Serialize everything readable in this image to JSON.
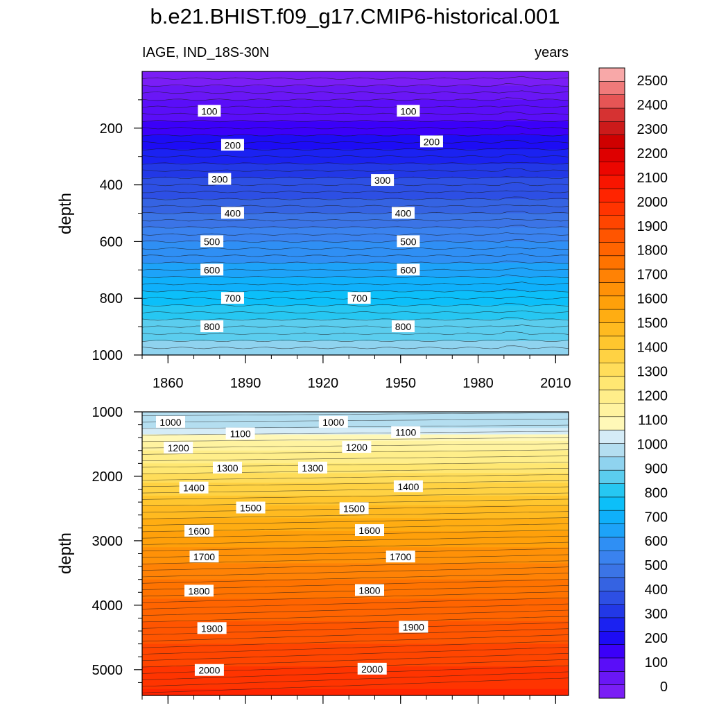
{
  "title": "b.e21.BHIST.f09_g17.CMIP6-historical.001",
  "chart_data": {
    "type": "contour",
    "title": "b.e21.BHIST.f09_g17.CMIP6-historical.001",
    "variable_label": "IAGE, IND_18S-30N",
    "units_label": "years",
    "colorbar": {
      "levels": [
        0,
        100,
        200,
        300,
        400,
        500,
        600,
        700,
        800,
        900,
        1000,
        1100,
        1200,
        1300,
        1400,
        1500,
        1600,
        1700,
        1800,
        1900,
        2000,
        2100,
        2200,
        2300,
        2400,
        2500
      ],
      "colors": [
        "#7a1ef5",
        "#6a17f6",
        "#5a0ef8",
        "#3b00f9",
        "#1d0cf5",
        "#1b22f1",
        "#2238e6",
        "#2d4fe4",
        "#3563e2",
        "#3b74e6",
        "#3a82ef",
        "#2f8ff4",
        "#1da3f9",
        "#0fb0fb",
        "#0cbff9",
        "#26c7f2",
        "#5bcdee",
        "#8fd3ef",
        "#b4def0",
        "#d5ecf7",
        "#fff8b8",
        "#fff3a0",
        "#ffee8a",
        "#ffe772",
        "#ffdd5a",
        "#ffd243",
        "#ffc62e",
        "#ffba20",
        "#ffad12",
        "#ffa00a",
        "#ff9107",
        "#ff8205",
        "#ff7300",
        "#ff6400",
        "#ff5500",
        "#ff4500",
        "#ff3400",
        "#ff2400",
        "#f81500",
        "#ec0600",
        "#de0000",
        "#cf0000",
        "#cc1a1a",
        "#d63232",
        "#e65555",
        "#f07a7a",
        "#f8a8a8"
      ]
    },
    "upper_panel": {
      "ylabel": "depth",
      "xticks": [
        1860,
        1890,
        1920,
        1950,
        1980,
        2010
      ],
      "yticks": [
        200,
        400,
        600,
        800,
        1000
      ],
      "ylim": [
        0,
        1000
      ],
      "xlim": [
        1850,
        2015
      ],
      "contour_labels": [
        {
          "text": "100",
          "year": 1876,
          "depth": 140
        },
        {
          "text": "100",
          "year": 1953,
          "depth": 140
        },
        {
          "text": "200",
          "year": 1885,
          "depth": 260
        },
        {
          "text": "200",
          "year": 1962,
          "depth": 248
        },
        {
          "text": "300",
          "year": 1880,
          "depth": 380
        },
        {
          "text": "300",
          "year": 1943,
          "depth": 384
        },
        {
          "text": "400",
          "year": 1885,
          "depth": 500
        },
        {
          "text": "400",
          "year": 1951,
          "depth": 500
        },
        {
          "text": "500",
          "year": 1877,
          "depth": 600
        },
        {
          "text": "500",
          "year": 1953,
          "depth": 600
        },
        {
          "text": "600",
          "year": 1877,
          "depth": 700
        },
        {
          "text": "600",
          "year": 1953,
          "depth": 700
        },
        {
          "text": "700",
          "year": 1885,
          "depth": 800
        },
        {
          "text": "700",
          "year": 1934,
          "depth": 800
        },
        {
          "text": "800",
          "year": 1877,
          "depth": 900
        },
        {
          "text": "800",
          "year": 1951,
          "depth": 900
        }
      ]
    },
    "lower_panel": {
      "ylabel": "depth",
      "yticks": [
        1000,
        2000,
        3000,
        4000,
        5000
      ],
      "ylim": [
        1000,
        5400
      ],
      "xlim": [
        1850,
        2015
      ],
      "contour_labels": [
        {
          "text": "1000",
          "year": 1861,
          "depth": 1160
        },
        {
          "text": "1000",
          "year": 1924,
          "depth": 1160
        },
        {
          "text": "1100",
          "year": 1888,
          "depth": 1340
        },
        {
          "text": "1100",
          "year": 1952,
          "depth": 1320
        },
        {
          "text": "1200",
          "year": 1864,
          "depth": 1560
        },
        {
          "text": "1200",
          "year": 1933,
          "depth": 1550
        },
        {
          "text": "1300",
          "year": 1883,
          "depth": 1870
        },
        {
          "text": "1300",
          "year": 1916,
          "depth": 1870
        },
        {
          "text": "1400",
          "year": 1870,
          "depth": 2180
        },
        {
          "text": "1400",
          "year": 1953,
          "depth": 2160
        },
        {
          "text": "1500",
          "year": 1892,
          "depth": 2490
        },
        {
          "text": "1500",
          "year": 1932,
          "depth": 2500
        },
        {
          "text": "1600",
          "year": 1872,
          "depth": 2850
        },
        {
          "text": "1600",
          "year": 1938,
          "depth": 2840
        },
        {
          "text": "1700",
          "year": 1874,
          "depth": 3250
        },
        {
          "text": "1700",
          "year": 1950,
          "depth": 3250
        },
        {
          "text": "1800",
          "year": 1872,
          "depth": 3780
        },
        {
          "text": "1800",
          "year": 1938,
          "depth": 3770
        },
        {
          "text": "1900",
          "year": 1877,
          "depth": 4360
        },
        {
          "text": "1900",
          "year": 1955,
          "depth": 4340
        },
        {
          "text": "2000",
          "year": 1876,
          "depth": 5010
        },
        {
          "text": "2000",
          "year": 1939,
          "depth": 4990
        }
      ]
    }
  }
}
